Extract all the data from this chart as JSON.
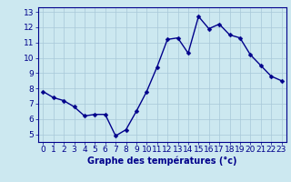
{
  "x": [
    0,
    1,
    2,
    3,
    4,
    5,
    6,
    7,
    8,
    9,
    10,
    11,
    12,
    13,
    14,
    15,
    16,
    17,
    18,
    19,
    20,
    21,
    22,
    23
  ],
  "y": [
    7.8,
    7.4,
    7.2,
    6.8,
    6.2,
    6.3,
    6.3,
    4.9,
    5.3,
    6.5,
    7.8,
    9.4,
    11.2,
    11.3,
    10.3,
    12.7,
    11.9,
    12.2,
    11.5,
    11.3,
    10.2,
    9.5,
    8.8,
    8.5
  ],
  "xlabel": "Graphe des températures (°c)",
  "ylabel_ticks": [
    5,
    6,
    7,
    8,
    9,
    10,
    11,
    12,
    13
  ],
  "xtick_labels": [
    "0",
    "1",
    "2",
    "3",
    "4",
    "5",
    "6",
    "7",
    "8",
    "9",
    "10",
    "11",
    "12",
    "13",
    "14",
    "15",
    "16",
    "17",
    "18",
    "19",
    "20",
    "21",
    "22",
    "23"
  ],
  "ylim": [
    4.5,
    13.3
  ],
  "xlim": [
    -0.5,
    23.5
  ],
  "line_color": "#00008b",
  "marker_color": "#00008b",
  "bg_color": "#cce8f0",
  "grid_color": "#a8c8d8",
  "axes_color": "#00008b",
  "xlabel_color": "#00008b",
  "xlabel_fontsize": 7,
  "tick_fontsize": 6.5,
  "line_width": 1.0,
  "marker_size": 2.5
}
